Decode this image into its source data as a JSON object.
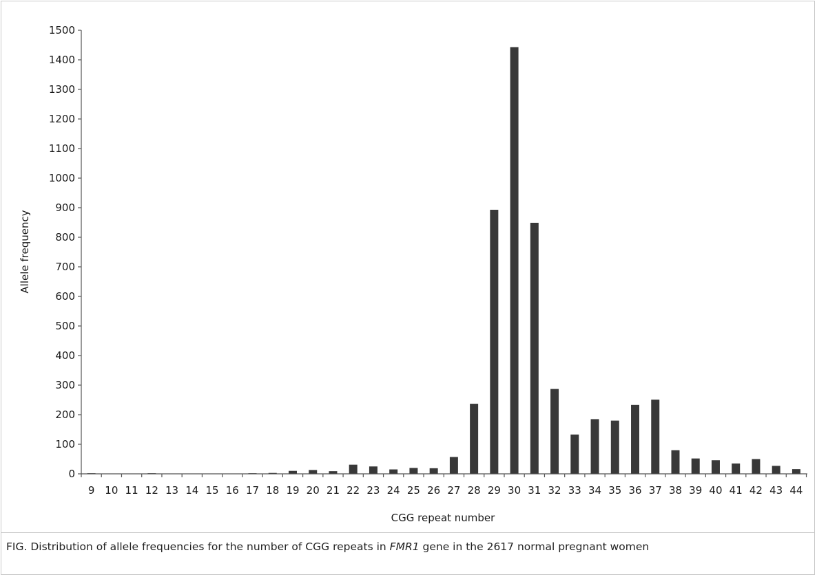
{
  "caption": {
    "prefix": "FIG.  Distribution of allele frequencies for the number of CGG repeats in ",
    "gene": "FMR1",
    "suffix": " gene in the 2617 normal pregnant women"
  },
  "chart_data": {
    "type": "bar",
    "title": "",
    "xlabel": "CGG repeat number",
    "ylabel": "Allele frequency",
    "ylim": [
      0,
      1500
    ],
    "yticks": [
      0,
      100,
      200,
      300,
      400,
      500,
      600,
      700,
      800,
      900,
      1000,
      1100,
      1200,
      1300,
      1400,
      1500
    ],
    "categories": [
      "9",
      "10",
      "11",
      "12",
      "13",
      "14",
      "15",
      "16",
      "17",
      "18",
      "19",
      "20",
      "21",
      "22",
      "23",
      "24",
      "25",
      "26",
      "27",
      "28",
      "29",
      "30",
      "31",
      "32",
      "33",
      "34",
      "35",
      "36",
      "37",
      "38",
      "39",
      "40",
      "41",
      "42",
      "43",
      "44"
    ],
    "values": [
      2,
      0,
      0,
      2,
      0,
      1,
      1,
      1,
      2,
      3,
      10,
      13,
      9,
      31,
      25,
      15,
      20,
      19,
      57,
      237,
      893,
      1443,
      849,
      287,
      133,
      185,
      180,
      233,
      251,
      80,
      52,
      46,
      35,
      50,
      27,
      16
    ],
    "bar_color": "#383838",
    "axis_color": "#555555",
    "grid": false,
    "legend": false
  }
}
